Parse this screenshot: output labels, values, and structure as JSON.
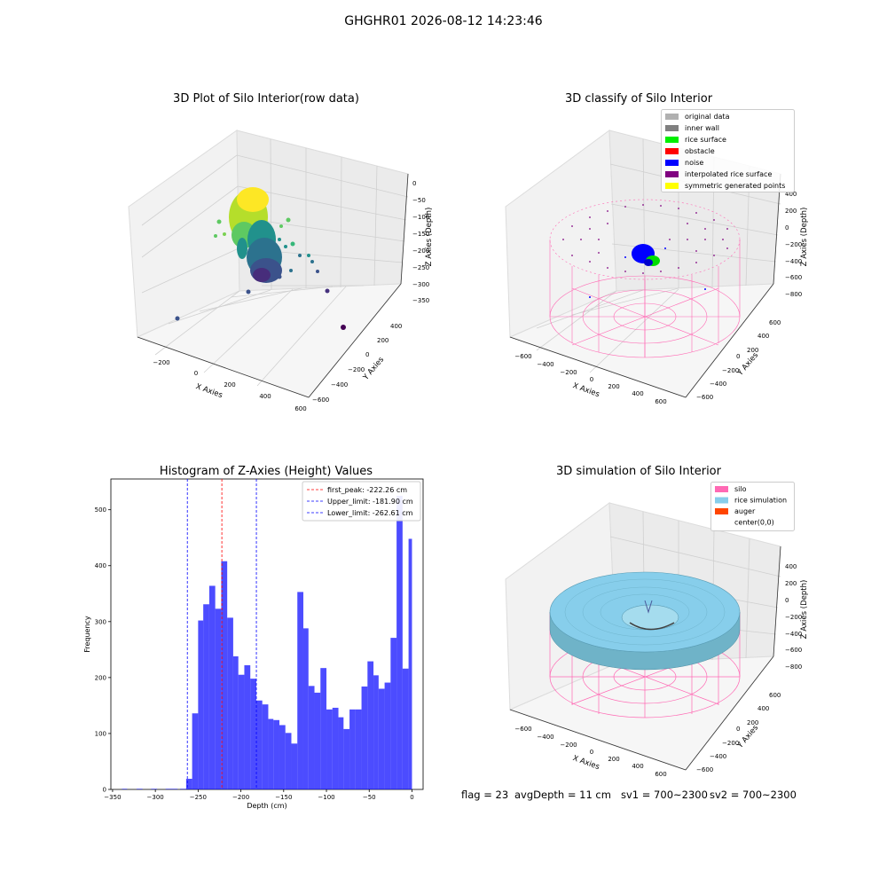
{
  "suptitle": "GHGHR01 2026-08-12 14:23:46",
  "panels": {
    "raw": {
      "title": "3D Plot of Silo Interior(row data)",
      "xlabel": "X Axies",
      "ylabel": "Y Axies",
      "zlabel": "Z Axies (Depth)",
      "xticks": [
        "−200",
        "0",
        "200",
        "400",
        "600"
      ],
      "yticks": [
        "400",
        "200",
        "0",
        "−200",
        "−400",
        "−600"
      ],
      "zticks": [
        "0",
        "−50",
        "−100",
        "−150",
        "−200",
        "−250",
        "−300",
        "−350"
      ]
    },
    "classify": {
      "title": "3D classify of Silo Interior",
      "xlabel": "X Axies",
      "ylabel": "Y Axies",
      "zlabel": "Z Axies (Depth)",
      "xticks": [
        "−600",
        "−400",
        "−200",
        "0",
        "200",
        "400",
        "600"
      ],
      "yticks": [
        "600",
        "400",
        "200",
        "0",
        "−200",
        "−400",
        "−600"
      ],
      "zticks": [
        "400",
        "200",
        "0",
        "−200",
        "−400",
        "−600",
        "−800"
      ],
      "legend": [
        {
          "label": "original data",
          "color": "#b0b0b0"
        },
        {
          "label": "inner wall",
          "color": "#808080"
        },
        {
          "label": "rice surface",
          "color": "#00ee00"
        },
        {
          "label": "obstacle",
          "color": "#ff0000"
        },
        {
          "label": "noise",
          "color": "#0000ff"
        },
        {
          "label": "interpolated rice surface",
          "color": "#800080"
        },
        {
          "label": "symmetric generated points",
          "color": "#ffff00"
        }
      ]
    },
    "simulation": {
      "title": "3D simulation of Silo Interior",
      "xlabel": "X Axies",
      "ylabel": "Y Axies",
      "zlabel": "Z Axies (Depth)",
      "xticks": [
        "−600",
        "−400",
        "−200",
        "0",
        "200",
        "400",
        "600"
      ],
      "yticks": [
        "600",
        "400",
        "200",
        "0",
        "−200",
        "−400",
        "−600"
      ],
      "zticks": [
        "400",
        "200",
        "0",
        "−200",
        "−400",
        "−600",
        "−800"
      ],
      "legend": [
        {
          "label": "silo",
          "color": "#ff69b4"
        },
        {
          "label": "rice simulation",
          "color": "#87ceeb"
        },
        {
          "label": "auger",
          "color": "#ff4500"
        },
        {
          "label": "center(0,0)",
          "color": "none"
        }
      ]
    }
  },
  "chart_data": {
    "type": "bar",
    "title": "Histogram of Z-Axies (Height) Values",
    "xlabel": "Depth (cm)",
    "ylabel": "Frequency",
    "xlim": [
      -352,
      13
    ],
    "ylim": [
      0,
      555
    ],
    "xticks": [
      -350,
      -300,
      -250,
      -200,
      -150,
      -100,
      -50,
      0
    ],
    "yticks": [
      0,
      100,
      200,
      300,
      400,
      500
    ],
    "bar_color": "#0000ff",
    "bins": [
      {
        "x0": -339,
        "x1": -333,
        "value": 1
      },
      {
        "x0": -322,
        "x1": -315,
        "value": 1
      },
      {
        "x0": -305,
        "x1": -298,
        "value": 1
      },
      {
        "x0": -288,
        "x1": -281,
        "value": 1
      },
      {
        "x0": -281,
        "x1": -274,
        "value": 1
      },
      {
        "x0": -271,
        "x1": -264,
        "value": 1
      },
      {
        "x0": -264,
        "x1": -257,
        "value": 19
      },
      {
        "x0": -257,
        "x1": -250,
        "value": 136
      },
      {
        "x0": -250,
        "x1": -244,
        "value": 302
      },
      {
        "x0": -244,
        "x1": -237,
        "value": 331
      },
      {
        "x0": -237,
        "x1": -230,
        "value": 364
      },
      {
        "x0": -230,
        "x1": -223,
        "value": 323
      },
      {
        "x0": -223,
        "x1": -216,
        "value": 408
      },
      {
        "x0": -216,
        "x1": -209,
        "value": 307
      },
      {
        "x0": -209,
        "x1": -203,
        "value": 238
      },
      {
        "x0": -203,
        "x1": -196,
        "value": 205
      },
      {
        "x0": -196,
        "x1": -189,
        "value": 222
      },
      {
        "x0": -189,
        "x1": -182,
        "value": 198
      },
      {
        "x0": -182,
        "x1": -175,
        "value": 159
      },
      {
        "x0": -175,
        "x1": -168,
        "value": 152
      },
      {
        "x0": -168,
        "x1": -162,
        "value": 126
      },
      {
        "x0": -162,
        "x1": -155,
        "value": 124
      },
      {
        "x0": -155,
        "x1": -148,
        "value": 115
      },
      {
        "x0": -148,
        "x1": -141,
        "value": 101
      },
      {
        "x0": -141,
        "x1": -134,
        "value": 82
      },
      {
        "x0": -134,
        "x1": -127,
        "value": 353
      },
      {
        "x0": -127,
        "x1": -121,
        "value": 288
      },
      {
        "x0": -121,
        "x1": -114,
        "value": 185
      },
      {
        "x0": -114,
        "x1": -107,
        "value": 173
      },
      {
        "x0": -107,
        "x1": -100,
        "value": 217
      },
      {
        "x0": -100,
        "x1": -93,
        "value": 143
      },
      {
        "x0": -93,
        "x1": -86,
        "value": 146
      },
      {
        "x0": -86,
        "x1": -80,
        "value": 129
      },
      {
        "x0": -80,
        "x1": -73,
        "value": 108
      },
      {
        "x0": -73,
        "x1": -66,
        "value": 143
      },
      {
        "x0": -66,
        "x1": -59,
        "value": 143
      },
      {
        "x0": -59,
        "x1": -52,
        "value": 184
      },
      {
        "x0": -52,
        "x1": -45,
        "value": 229
      },
      {
        "x0": -45,
        "x1": -39,
        "value": 204
      },
      {
        "x0": -39,
        "x1": -32,
        "value": 180
      },
      {
        "x0": -32,
        "x1": -25,
        "value": 191
      },
      {
        "x0": -25,
        "x1": -18,
        "value": 271
      },
      {
        "x0": -18,
        "x1": -11,
        "value": 525
      },
      {
        "x0": -11,
        "x1": -4,
        "value": 216
      },
      {
        "x0": -4,
        "x1": 0,
        "value": 448
      }
    ],
    "vlines": [
      {
        "x": -222.26,
        "color": "#ff0000",
        "label": "first_peak: -222.26 cm"
      },
      {
        "x": -181.9,
        "color": "#0000ff",
        "label": "Upper_limit: -181.90 cm"
      },
      {
        "x": -262.61,
        "color": "#0000ff",
        "label": "Lower_limit: -262.61 cm"
      }
    ],
    "legend_position": "top-right"
  },
  "footer": {
    "flag": "flag = 23",
    "avg": "avgDepth = 11 cm",
    "sv1": "sv1 = 700~2300",
    "sv2": "sv2 = 700~2300"
  }
}
